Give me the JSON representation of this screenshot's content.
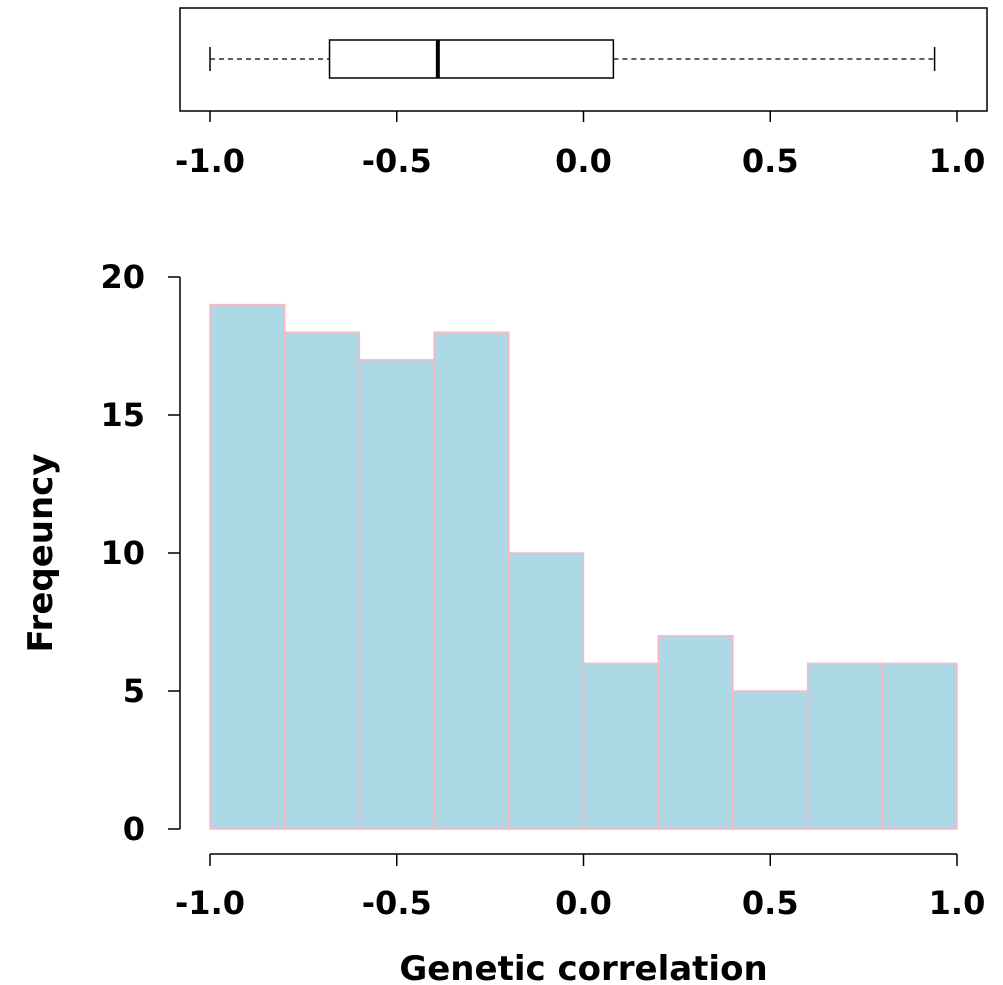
{
  "chart_data": [
    {
      "type": "box",
      "xlim": [
        -1.0,
        1.0
      ],
      "whisker_low": -1.0,
      "q1": -0.68,
      "median": -0.39,
      "q3": 0.08,
      "whisker_high": 0.94,
      "x_ticks": [
        "-1.0",
        "-0.5",
        "0.0",
        "0.5",
        "1.0"
      ],
      "x_tick_values": [
        -1.0,
        -0.5,
        0.0,
        0.5,
        1.0
      ],
      "box_fill": "#ffffff",
      "line_color": "#000000"
    },
    {
      "type": "bar",
      "histogram": true,
      "bins": [
        [
          -1.0,
          -0.8
        ],
        [
          -0.8,
          -0.6
        ],
        [
          -0.6,
          -0.4
        ],
        [
          -0.4,
          -0.2
        ],
        [
          -0.2,
          0.0
        ],
        [
          0.0,
          0.2
        ],
        [
          0.2,
          0.4
        ],
        [
          0.4,
          0.6
        ],
        [
          0.6,
          0.8
        ],
        [
          0.8,
          1.0
        ]
      ],
      "values": [
        19,
        18,
        17,
        18,
        10,
        6,
        7,
        5,
        6,
        6
      ],
      "xlabel": "Genetic correlation",
      "ylabel": "Freqeuncy",
      "xlim": [
        -1.0,
        1.0
      ],
      "ylim": [
        0,
        20
      ],
      "x_ticks": [
        "-1.0",
        "-0.5",
        "0.0",
        "0.5",
        "1.0"
      ],
      "x_tick_values": [
        -1.0,
        -0.5,
        0.0,
        0.5,
        1.0
      ],
      "y_ticks": [
        "0",
        "5",
        "10",
        "15",
        "20"
      ],
      "y_tick_values": [
        0,
        5,
        10,
        15,
        20
      ],
      "bar_fill": "#add8e6",
      "bar_edge": "#ffb6c1",
      "grid": false
    }
  ]
}
